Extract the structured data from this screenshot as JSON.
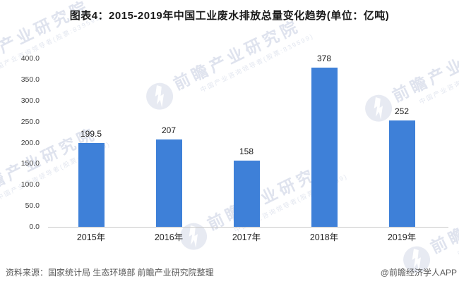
{
  "title": "图表4：2015-2019年中国工业废水排放总量变化趋势(单位：亿吨)",
  "chart_data": {
    "type": "bar",
    "title": "图表4：2015-2019年中国工业废水排放总量变化趋势(单位：亿吨)",
    "unit": "亿吨",
    "categories": [
      "2015年",
      "2016年",
      "2017年",
      "2018年",
      "2019年"
    ],
    "values": [
      199.5,
      207,
      158,
      378,
      252
    ],
    "value_labels": [
      "199.5",
      "207",
      "158",
      "378",
      "252"
    ],
    "xlabel": "",
    "ylabel": "",
    "ylim": [
      0,
      400
    ],
    "y_ticks": [
      "400.0",
      "350.0",
      "300.0",
      "250.0",
      "200.0",
      "150.0",
      "100.0",
      "50.0",
      "0.0"
    ],
    "grid": false,
    "legend": null,
    "bar_color": "#3E80D8"
  },
  "watermark": {
    "main": "前瞻产业研究院",
    "sub": "中国产业咨询领导者(股票:839599)",
    "logo": "qianzhan-logo"
  },
  "footer": {
    "source": "资料来源：国家统计局 生态环境部 前瞻产业研究院整理",
    "credit": "@前瞻经济学人APP"
  }
}
